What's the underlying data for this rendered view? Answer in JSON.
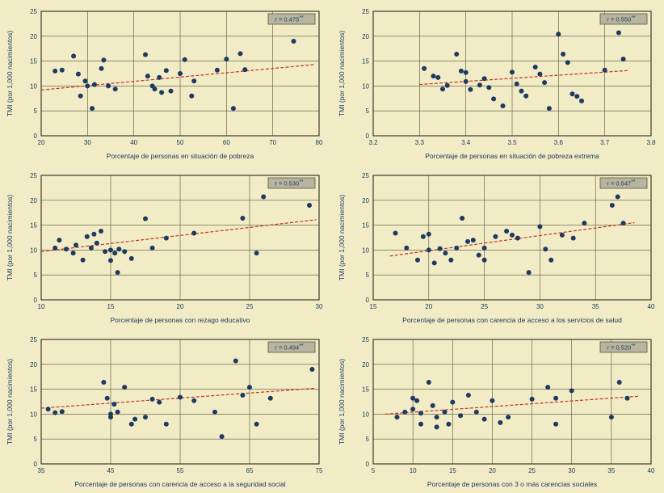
{
  "page": {
    "background": "#f1ecc5"
  },
  "style": {
    "point_color": "#1d3a60",
    "trend_color": "#c23327",
    "grid_color": "#55543e",
    "border_color": "#2e2d20",
    "text_color": "#1d3a60",
    "rbox_bg": "#b7b5a0",
    "rbox_border": "#55543e"
  },
  "chart_data": [
    {
      "type": "scatter",
      "xlabel": "Porcentaje de personas en situación de pobreza",
      "ylabel": "TMI (por 1,000 nacimientos)",
      "xlim": [
        20,
        80
      ],
      "ylim": [
        0,
        25
      ],
      "xticks": [
        20,
        30,
        40,
        50,
        60,
        70,
        80
      ],
      "yticks": [
        0,
        5,
        10,
        15,
        20,
        25
      ],
      "r_label": "r = 0.475",
      "r_stars": "**",
      "grid": true,
      "legend": false,
      "trend": [
        [
          20,
          9.2
        ],
        [
          79,
          14.3
        ]
      ],
      "points": [
        [
          23,
          13
        ],
        [
          24.5,
          13.2
        ],
        [
          27,
          16
        ],
        [
          28,
          12.4
        ],
        [
          28.5,
          8
        ],
        [
          29.5,
          11
        ],
        [
          30,
          10
        ],
        [
          31,
          5.5
        ],
        [
          31.5,
          10.3
        ],
        [
          33,
          13.5
        ],
        [
          33.5,
          15.2
        ],
        [
          34.5,
          10
        ],
        [
          36,
          9.4
        ],
        [
          42.5,
          16.3
        ],
        [
          43,
          12
        ],
        [
          44,
          10
        ],
        [
          44.5,
          9.4
        ],
        [
          45.5,
          11.7
        ],
        [
          46,
          8.7
        ],
        [
          47,
          13.1
        ],
        [
          48,
          9
        ],
        [
          50,
          12.5
        ],
        [
          51,
          15.3
        ],
        [
          52.5,
          8
        ],
        [
          53,
          11
        ],
        [
          58,
          13.2
        ],
        [
          60,
          15.4
        ],
        [
          61.5,
          5.5
        ],
        [
          63,
          16.5
        ],
        [
          64,
          13.3
        ],
        [
          74.5,
          19
        ]
      ]
    },
    {
      "type": "scatter",
      "xlabel": "Porcentaje de personas en situación de pobreza extrema",
      "ylabel": "TMI (por 1,000 nacimientos)",
      "xlim": [
        3.2,
        3.8
      ],
      "ylim": [
        0,
        25
      ],
      "xticks": [
        3.2,
        3.3,
        3.4,
        3.5,
        3.6,
        3.7,
        3.8
      ],
      "yticks": [
        0,
        5,
        10,
        15,
        20,
        25
      ],
      "r_label": "r = 0.550",
      "r_stars": "**",
      "grid": true,
      "legend": false,
      "trend": [
        [
          3.3,
          10.3
        ],
        [
          3.75,
          13.1
        ]
      ],
      "points": [
        [
          3.31,
          13.5
        ],
        [
          3.33,
          12
        ],
        [
          3.34,
          11.7
        ],
        [
          3.35,
          9.4
        ],
        [
          3.36,
          10.1
        ],
        [
          3.38,
          16.4
        ],
        [
          3.39,
          13
        ],
        [
          3.4,
          12.7
        ],
        [
          3.4,
          10.9
        ],
        [
          3.41,
          9.3
        ],
        [
          3.43,
          10.2
        ],
        [
          3.44,
          11.5
        ],
        [
          3.45,
          9.7
        ],
        [
          3.46,
          7.4
        ],
        [
          3.48,
          6
        ],
        [
          3.5,
          12.8
        ],
        [
          3.51,
          10.4
        ],
        [
          3.52,
          9
        ],
        [
          3.53,
          8
        ],
        [
          3.55,
          13.8
        ],
        [
          3.56,
          12.4
        ],
        [
          3.57,
          10.7
        ],
        [
          3.58,
          5.5
        ],
        [
          3.6,
          20.4
        ],
        [
          3.61,
          16.4
        ],
        [
          3.62,
          14.7
        ],
        [
          3.63,
          8.4
        ],
        [
          3.64,
          7.9
        ],
        [
          3.65,
          7
        ],
        [
          3.7,
          13.2
        ],
        [
          3.73,
          20.7
        ],
        [
          3.74,
          15.4
        ]
      ]
    },
    {
      "type": "scatter",
      "xlabel": "Porcentaje de personas con rezago educativo",
      "ylabel": "TMI (por 1,000 nacimientos)",
      "xlim": [
        10,
        30
      ],
      "ylim": [
        0,
        25
      ],
      "xticks": [
        10,
        15,
        20,
        25,
        30
      ],
      "yticks": [
        0,
        5,
        10,
        15,
        20,
        25
      ],
      "r_label": "r = 0.530",
      "r_stars": "**",
      "grid": true,
      "legend": false,
      "trend": [
        [
          10,
          9.7
        ],
        [
          29.8,
          16.1
        ]
      ],
      "points": [
        [
          11,
          10.4
        ],
        [
          11.3,
          12
        ],
        [
          11.8,
          10.2
        ],
        [
          12.3,
          9.4
        ],
        [
          12.5,
          11
        ],
        [
          13,
          8
        ],
        [
          13.3,
          12.7
        ],
        [
          13.6,
          10.4
        ],
        [
          13.8,
          13.2
        ],
        [
          14,
          11.4
        ],
        [
          14.3,
          13.8
        ],
        [
          14.6,
          9.7
        ],
        [
          15,
          10
        ],
        [
          15,
          7.9
        ],
        [
          15.3,
          9.4
        ],
        [
          15.6,
          10.2
        ],
        [
          15.5,
          5.5
        ],
        [
          16,
          9.7
        ],
        [
          16.5,
          8.3
        ],
        [
          17.5,
          16.3
        ],
        [
          18,
          10.4
        ],
        [
          19,
          12.4
        ],
        [
          21,
          13.4
        ],
        [
          24.5,
          16.4
        ],
        [
          25.5,
          9.4
        ],
        [
          26,
          20.7
        ],
        [
          29.3,
          19
        ]
      ]
    },
    {
      "type": "scatter",
      "xlabel": "Porcentaje de personas con carencia de acceso a los servicios de salud",
      "ylabel": "TMI (por 1,000 nacimientos)",
      "xlim": [
        15,
        40
      ],
      "ylim": [
        0,
        25
      ],
      "xticks": [
        15,
        20,
        25,
        30,
        35,
        40
      ],
      "yticks": [
        0,
        5,
        10,
        15,
        20,
        25
      ],
      "r_label": "r = 0.547",
      "r_stars": "**",
      "grid": true,
      "legend": false,
      "trend": [
        [
          16.5,
          8.8
        ],
        [
          38.5,
          15.5
        ]
      ],
      "points": [
        [
          17,
          13.4
        ],
        [
          18,
          10.4
        ],
        [
          19,
          8
        ],
        [
          19.5,
          12.7
        ],
        [
          20,
          13.2
        ],
        [
          20,
          10
        ],
        [
          20.5,
          7.4
        ],
        [
          21,
          10.3
        ],
        [
          21.5,
          9.4
        ],
        [
          22,
          8
        ],
        [
          22.5,
          10.4
        ],
        [
          23,
          16.4
        ],
        [
          23.5,
          11.7
        ],
        [
          24,
          12
        ],
        [
          24.5,
          9
        ],
        [
          25,
          10.4
        ],
        [
          25,
          8
        ],
        [
          26,
          12.7
        ],
        [
          27,
          13.8
        ],
        [
          27.5,
          13
        ],
        [
          28,
          12.4
        ],
        [
          29,
          5.5
        ],
        [
          30,
          14.7
        ],
        [
          30.5,
          10.2
        ],
        [
          31,
          8
        ],
        [
          32,
          13
        ],
        [
          33,
          12.4
        ],
        [
          34,
          15.4
        ],
        [
          36.5,
          19
        ],
        [
          37,
          20.7
        ],
        [
          37.5,
          15.4
        ]
      ]
    },
    {
      "type": "scatter",
      "xlabel": "Porcentaje de personas con carencia de acceso a la seguridad social",
      "ylabel": "TMI (por 1,000 nacimientos)",
      "xlim": [
        35,
        75
      ],
      "ylim": [
        0,
        25
      ],
      "xticks": [
        35,
        45,
        55,
        65,
        75
      ],
      "yticks": [
        0,
        5,
        10,
        15,
        20,
        25
      ],
      "r_label": "r = 0.494",
      "r_stars": "**",
      "grid": true,
      "legend": false,
      "trend": [
        [
          35,
          11.2
        ],
        [
          74.5,
          15.2
        ]
      ],
      "points": [
        [
          36,
          11
        ],
        [
          37,
          10.3
        ],
        [
          38,
          10.5
        ],
        [
          44,
          16.4
        ],
        [
          44.5,
          13.2
        ],
        [
          45,
          10
        ],
        [
          45,
          9.4
        ],
        [
          45.5,
          12
        ],
        [
          46,
          10.4
        ],
        [
          47,
          15.4
        ],
        [
          48,
          8
        ],
        [
          48.5,
          9
        ],
        [
          50,
          9.4
        ],
        [
          51,
          13
        ],
        [
          52,
          12.4
        ],
        [
          53,
          8
        ],
        [
          55,
          13.4
        ],
        [
          57,
          12.7
        ],
        [
          60,
          10.4
        ],
        [
          61,
          5.5
        ],
        [
          63,
          20.7
        ],
        [
          64,
          13.8
        ],
        [
          65,
          15.4
        ],
        [
          66,
          8
        ],
        [
          68,
          13.2
        ],
        [
          74,
          19
        ]
      ]
    },
    {
      "type": "scatter",
      "xlabel": "Porcentaje de personas con 3 o más carencias sociales",
      "ylabel": "TMI (por 1,000 nacimientos)",
      "xlim": [
        5,
        40
      ],
      "ylim": [
        0,
        25
      ],
      "xticks": [
        5,
        10,
        15,
        20,
        25,
        30,
        35,
        40
      ],
      "yticks": [
        0,
        5,
        10,
        15,
        20,
        25
      ],
      "r_label": "r = 0.520",
      "r_stars": "**",
      "grid": true,
      "legend": false,
      "trend": [
        [
          6.5,
          10.0
        ],
        [
          38.5,
          13.6
        ]
      ],
      "points": [
        [
          8,
          9.4
        ],
        [
          9,
          10.4
        ],
        [
          10,
          13.2
        ],
        [
          10,
          11
        ],
        [
          10.5,
          12.7
        ],
        [
          11,
          10.2
        ],
        [
          11,
          8
        ],
        [
          12,
          16.4
        ],
        [
          12.5,
          11.7
        ],
        [
          13,
          9.4
        ],
        [
          13,
          7.4
        ],
        [
          14,
          10.4
        ],
        [
          14.5,
          8
        ],
        [
          15,
          12.4
        ],
        [
          16,
          9.7
        ],
        [
          17,
          13.8
        ],
        [
          18,
          10.4
        ],
        [
          19,
          9
        ],
        [
          20,
          12.7
        ],
        [
          21,
          8.3
        ],
        [
          22,
          9.4
        ],
        [
          25,
          13
        ],
        [
          27,
          15.4
        ],
        [
          28,
          13.2
        ],
        [
          28,
          8
        ],
        [
          30,
          14.7
        ],
        [
          35,
          9.4
        ],
        [
          36,
          16.4
        ],
        [
          37,
          13.2
        ]
      ]
    }
  ]
}
